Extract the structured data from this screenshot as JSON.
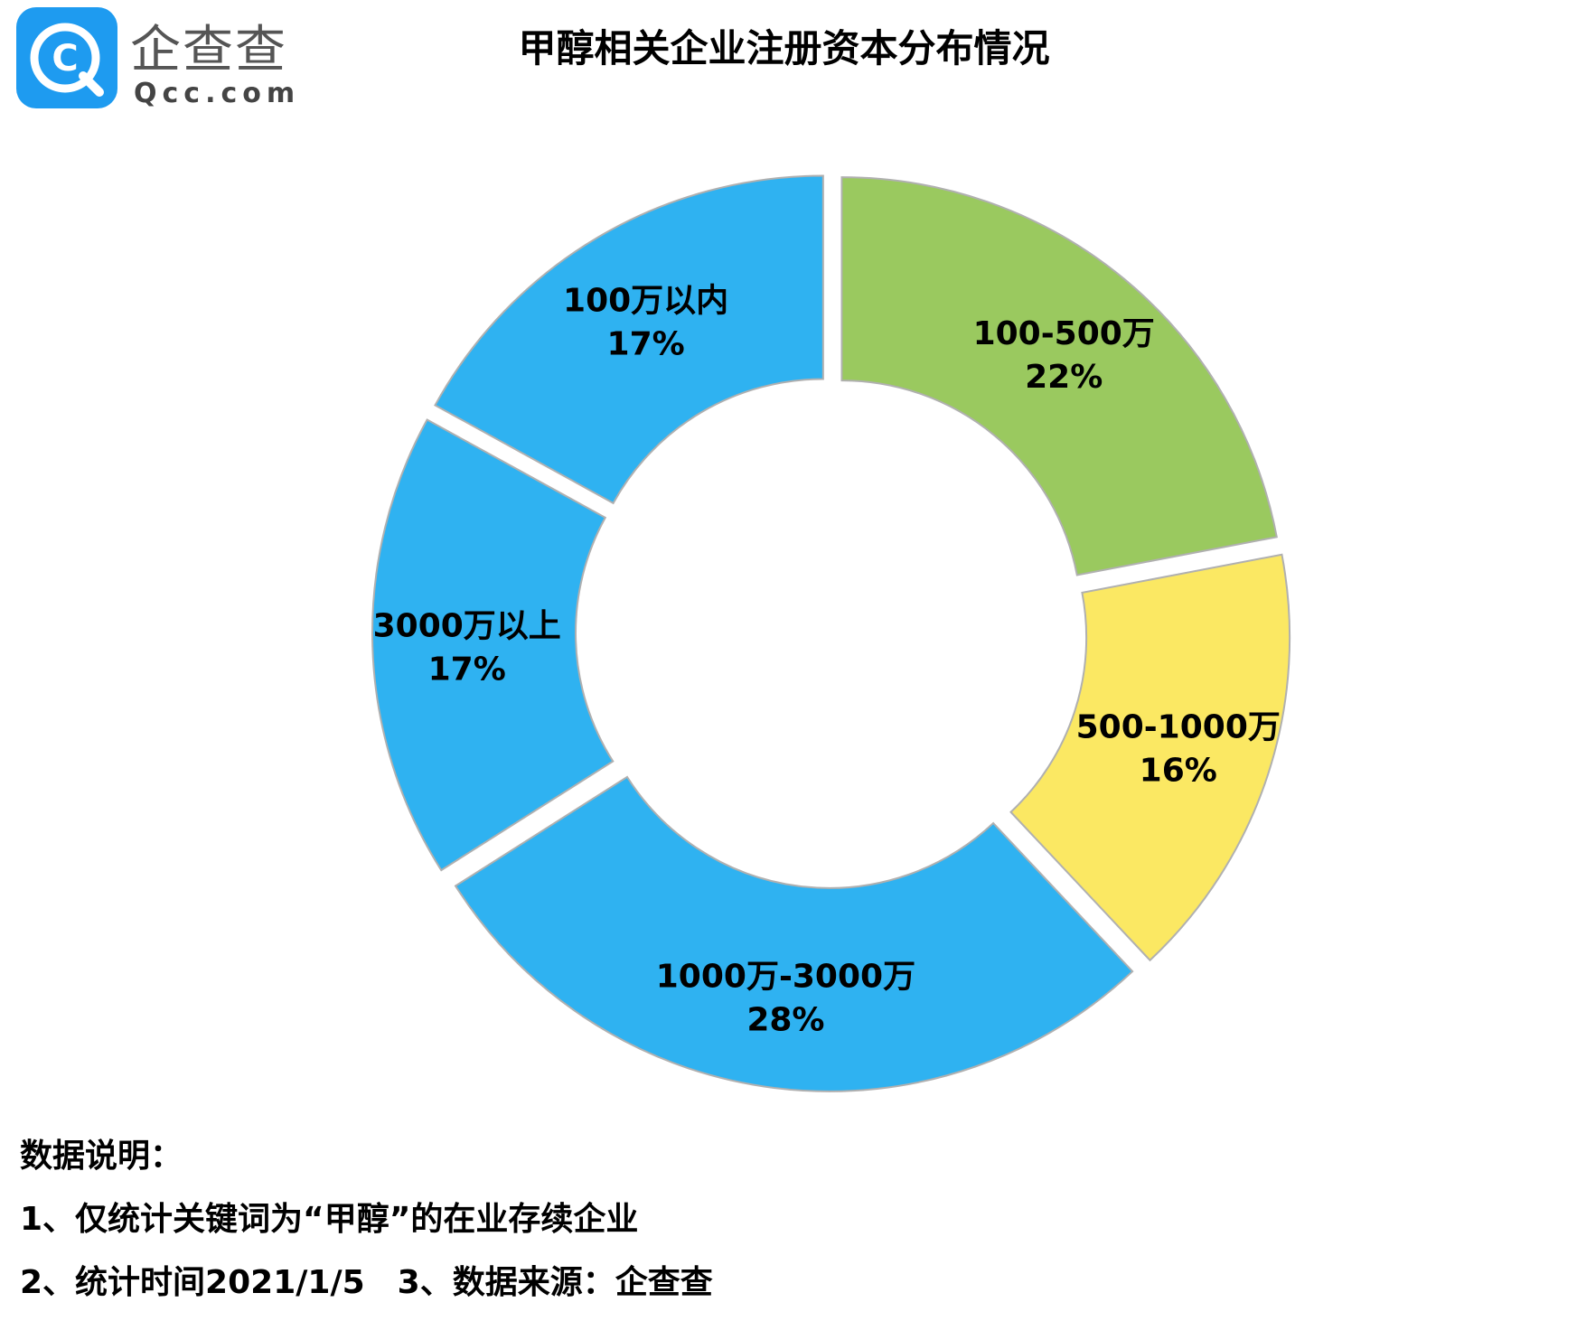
{
  "brand": {
    "name": "企查查",
    "domain": "Qcc.com",
    "logo_letter": "C",
    "color": "#1e9bf0"
  },
  "chart_data": {
    "type": "donut",
    "title": "甲醇相关企业注册资本分布情况",
    "slices": [
      {
        "label": "100-500万",
        "value": 22,
        "value_label": "22%",
        "color": "#9ac95f"
      },
      {
        "label": "500-1000万",
        "value": 16,
        "value_label": "16%",
        "color": "#fbe863"
      },
      {
        "label": "1000万-3000万",
        "value": 28,
        "value_label": "28%",
        "color": "#2fb2f1"
      },
      {
        "label": "3000万以上",
        "value": 17,
        "value_label": "17%",
        "color": "#2fb2f1"
      },
      {
        "label": "100万以内",
        "value": 17,
        "value_label": "17%",
        "color": "#2fb2f1"
      }
    ],
    "start_angle_deg": 0,
    "direction": "clockwise-from-top"
  },
  "notes": {
    "heading": "数据说明：",
    "line1": "1、仅统计关键词为“甲醇”的在业存续企业",
    "line2": "2、统计时间2021/1/5　3、数据来源：企查查"
  }
}
